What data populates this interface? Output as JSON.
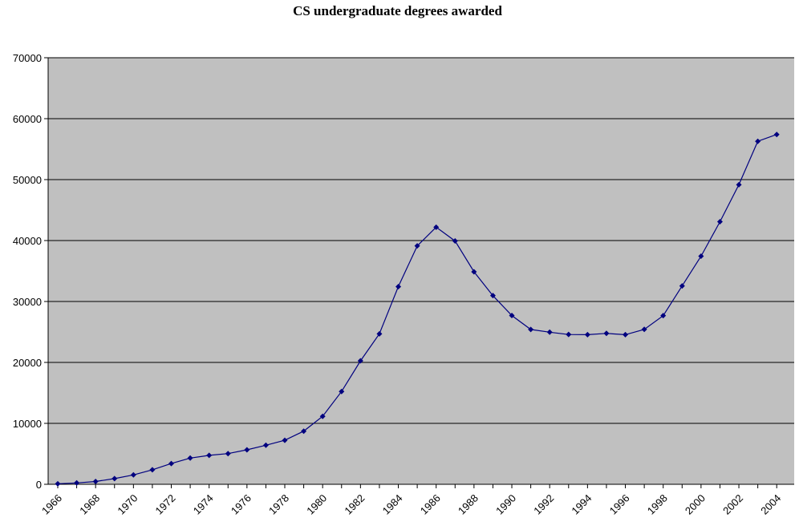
{
  "chart_data": {
    "type": "line",
    "title": "CS undergraduate degrees awarded",
    "xlabel": "",
    "ylabel": "",
    "x": [
      1966,
      1967,
      1968,
      1969,
      1970,
      1971,
      1972,
      1973,
      1974,
      1975,
      1976,
      1977,
      1978,
      1979,
      1980,
      1981,
      1982,
      1983,
      1984,
      1985,
      1986,
      1987,
      1988,
      1989,
      1990,
      1991,
      1992,
      1993,
      1994,
      1995,
      1996,
      1997,
      1998,
      1999,
      2000,
      2001,
      2002,
      2003,
      2004
    ],
    "values": [
      89,
      223,
      459,
      933,
      1544,
      2388,
      3402,
      4304,
      4756,
      5033,
      5652,
      6407,
      7224,
      8719,
      11154,
      15233,
      20267,
      24680,
      32439,
      39121,
      42195,
      39927,
      34870,
      30963,
      27695,
      25410,
      24967,
      24581,
      24553,
      24769,
      24553,
      25426,
      27674,
      32548,
      37439,
      43090,
      49164,
      56285,
      57402
    ],
    "xticks": [
      "1966",
      "1968",
      "1970",
      "1972",
      "1974",
      "1976",
      "1978",
      "1980",
      "1982",
      "1984",
      "1986",
      "1988",
      "1990",
      "1992",
      "1994",
      "1996",
      "1998",
      "2000",
      "2002",
      "2004"
    ],
    "yticks": [
      "0",
      "10000",
      "20000",
      "30000",
      "40000",
      "50000",
      "60000",
      "70000"
    ],
    "ylim": [
      0,
      70000
    ],
    "grid": true,
    "legend": "none",
    "colors": {
      "plot_bg": "#c0c0c0",
      "line": "#00007f",
      "marker": "#00007f",
      "grid": "#000000"
    }
  }
}
